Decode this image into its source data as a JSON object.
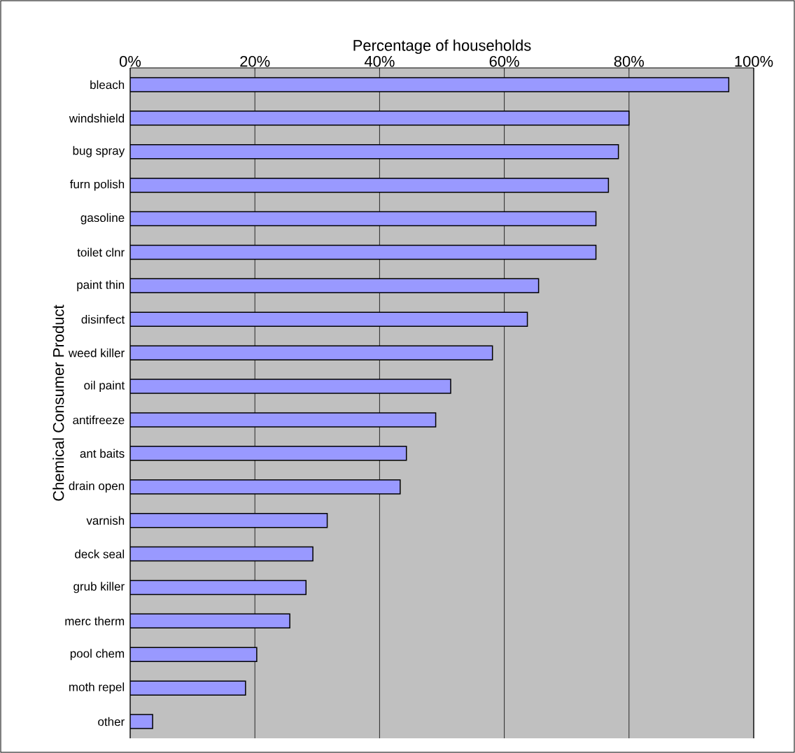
{
  "chart_data": {
    "type": "bar",
    "orientation": "horizontal",
    "xlabel": "Percentage of households",
    "ylabel": "Chemical Consumer Product",
    "categories": [
      "bleach",
      "windshield",
      "bug spray",
      "furn polish",
      "gasoline",
      "toilet clnr",
      "paint thin",
      "disinfect",
      "weed killer",
      "oil paint",
      "antifreeze",
      "ant baits",
      "drain open",
      "varnish",
      "deck seal",
      "grub killer",
      "merc therm",
      "pool chem",
      "moth repel",
      "other"
    ],
    "values": [
      96,
      80,
      78.3,
      76.7,
      74.7,
      74.7,
      65.5,
      63.7,
      58.1,
      51.4,
      49.0,
      44.3,
      43.3,
      31.6,
      29.3,
      28.2,
      25.6,
      20.3,
      18.5,
      3.6
    ],
    "color": "#9999ff",
    "xlim": [
      0,
      100
    ],
    "xticks": [
      {
        "value": 0,
        "label": "0%"
      },
      {
        "value": 20,
        "label": "20%"
      },
      {
        "value": 40,
        "label": "40%"
      },
      {
        "value": 60,
        "label": "60%"
      },
      {
        "value": 80,
        "label": "80%"
      },
      {
        "value": 100,
        "label": "100%"
      }
    ],
    "grid": "x"
  }
}
